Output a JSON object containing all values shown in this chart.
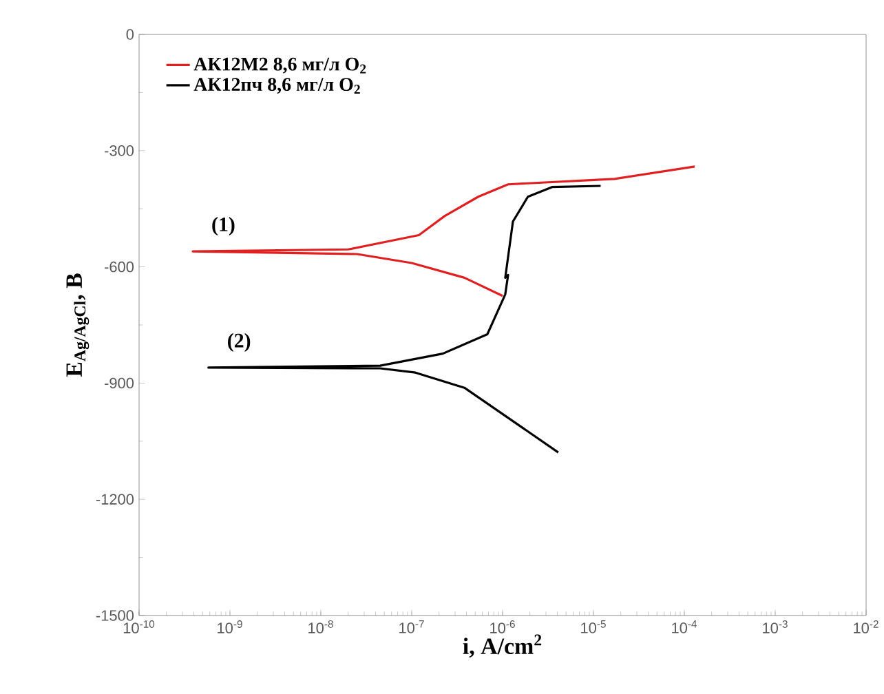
{
  "chart_data": {
    "type": "line",
    "xlabel": "i, A/cm$^{2}$",
    "ylabel": "E$_{Ag/AgCl}$, В",
    "log": "x",
    "legend": "top left",
    "marker": "none",
    "line_style": "solid",
    "grid": false,
    "xlim": [
      1e-10,
      0.01
    ],
    "ylim": [
      -1500,
      0
    ],
    "xticks": [
      {
        "value": 1e-10,
        "label": "10$^{-10}$"
      },
      {
        "value": 1e-09,
        "label": "10$^{-9}$"
      },
      {
        "value": 1e-08,
        "label": "10$^{-8}$"
      },
      {
        "value": 1e-07,
        "label": "10$^{-7}$"
      },
      {
        "value": 1e-06,
        "label": "10$^{-6}$"
      },
      {
        "value": 1e-05,
        "label": "10$^{-5}$"
      },
      {
        "value": 0.0001,
        "label": "10$^{-4}$"
      },
      {
        "value": 0.001,
        "label": "10$^{-3}$"
      },
      {
        "value": 0.01,
        "label": "10$^{-2}$"
      }
    ],
    "yticks": [
      -1500,
      -1200,
      -900,
      -600,
      -300,
      0
    ],
    "series": [
      {
        "name": "АК12М2 8,6 мг/л O$_{2}$",
        "color": "#e02020",
        "x": [
          1e-06,
          3.8e-07,
          1e-07,
          2.5e-08,
          3.9e-10,
          2e-08,
          1.2e-07,
          2.3e-07,
          5.4e-07,
          1.15e-06,
          9.3e-06,
          1.7e-05,
          0.00013
        ],
        "values": [
          -675,
          -628,
          -590,
          -567,
          -560,
          -555,
          -518,
          -469,
          -419,
          -387,
          -376,
          -373,
          -341
        ]
      },
      {
        "name": "АК12пч 8,6 мг/л O$_{2}$",
        "color": "#000000",
        "x": [
          4.1e-06,
          3.8e-07,
          1.1e-07,
          4.5e-08,
          5.8e-10,
          4.5e-08,
          2.2e-07,
          6.8e-07,
          1.07e-06,
          1.15e-06,
          1.07e-06,
          1.3e-06,
          1.9e-06,
          3.5e-06,
          1.2e-05
        ],
        "values": [
          -1079,
          -912,
          -873,
          -862,
          -860,
          -855,
          -824,
          -774,
          -671,
          -621,
          -628,
          -483,
          -419,
          -394,
          -391
        ]
      }
    ],
    "annotations": [
      "(1)",
      "(2)"
    ]
  }
}
